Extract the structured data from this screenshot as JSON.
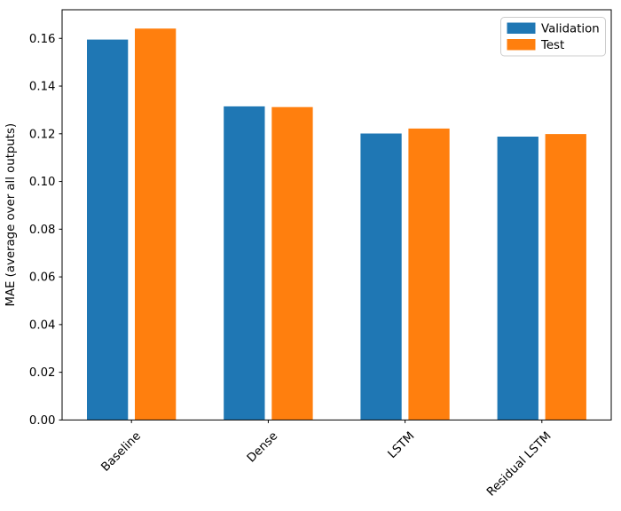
{
  "chart_data": {
    "type": "bar",
    "categories": [
      "Baseline",
      "Dense",
      "LSTM",
      "Residual LSTM"
    ],
    "series": [
      {
        "name": "Validation",
        "color": "#1f77b4",
        "values": [
          0.1595,
          0.1315,
          0.1201,
          0.1188
        ]
      },
      {
        "name": "Test",
        "color": "#ff7f0e",
        "values": [
          0.1641,
          0.1312,
          0.1222,
          0.1199
        ]
      }
    ],
    "title": "",
    "xlabel": "",
    "ylabel": "MAE (average over all outputs)",
    "ylim": [
      0,
      0.172
    ],
    "ytick_values": [
      0,
      0.02,
      0.04,
      0.06,
      0.08,
      0.1,
      0.12,
      0.14,
      0.16
    ],
    "yticks": [
      "0.00",
      "0.02",
      "0.04",
      "0.06",
      "0.08",
      "0.10",
      "0.12",
      "0.14",
      "0.16"
    ],
    "xtick_rotation_deg": 45,
    "grid": false,
    "legend": {
      "position": "upper right"
    },
    "colors": {
      "background": "#ffffff",
      "spine": "#000000",
      "text": "#000000",
      "legend_border": "#cccccc"
    }
  }
}
